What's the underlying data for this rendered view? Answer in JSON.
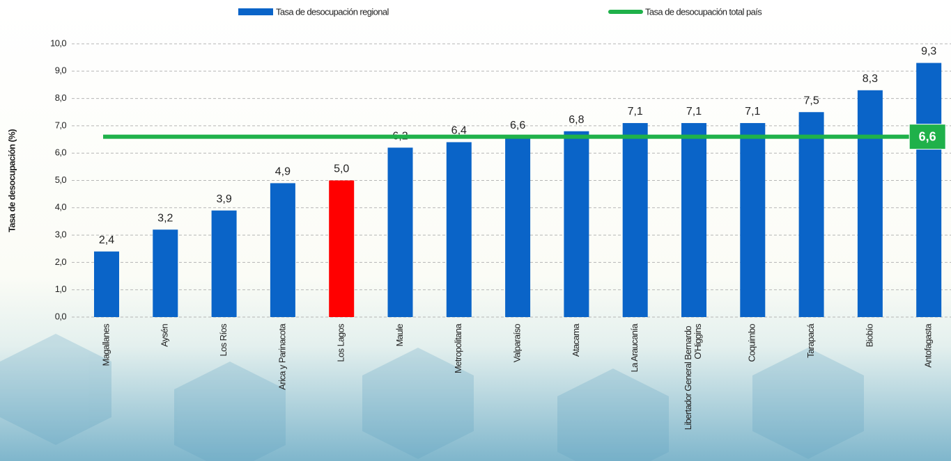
{
  "chart_data": {
    "type": "bar",
    "y_label": "Tasa de desocupación (%)",
    "categories": [
      "Magallanes",
      "Aysén",
      "Los Ríos",
      "Arica y Parinacota",
      "Los Lagos",
      "Maule",
      "Metropolitana",
      "Valparaíso",
      "Atacama",
      "La Araucanía",
      "Libertador General Bernardo O'Higgins",
      "Coquimbo",
      "Tarapacá",
      "Biobío",
      "Antofagasta"
    ],
    "series": [
      {
        "name": "Tasa de desocupación regional",
        "color": "#0a64c8",
        "colors": [
          "#0a64c8",
          "#0a64c8",
          "#0a64c8",
          "#0a64c8",
          "#ff0000",
          "#0a64c8",
          "#0a64c8",
          "#0a64c8",
          "#0a64c8",
          "#0a64c8",
          "#0a64c8",
          "#0a64c8",
          "#0a64c8",
          "#0a64c8",
          "#0a64c8"
        ],
        "values": [
          2.4,
          3.2,
          3.9,
          4.9,
          5.0,
          6.2,
          6.4,
          6.6,
          6.8,
          7.1,
          7.1,
          7.1,
          7.5,
          8.3,
          9.3
        ],
        "value_labels": [
          "2,4",
          "3,2",
          "3,9",
          "4,9",
          "5,0",
          "6,2",
          "6,4",
          "6,6",
          "6,8",
          "7,1",
          "7,1",
          "7,1",
          "7,5",
          "8,3",
          "9,3"
        ]
      },
      {
        "name": "Tasa de desocupación total país",
        "type": "line",
        "color": "#1fb14a",
        "value": 6.6,
        "value_label": "6,6"
      }
    ],
    "ylim": [
      0,
      10
    ],
    "yticks": [
      {
        "value": 0,
        "label": "0,0"
      },
      {
        "value": 1,
        "label": "1,0"
      },
      {
        "value": 2,
        "label": "2,0"
      },
      {
        "value": 3,
        "label": "3,0"
      },
      {
        "value": 4,
        "label": "4,0"
      },
      {
        "value": 5,
        "label": "5,0"
      },
      {
        "value": 6,
        "label": "6,0"
      },
      {
        "value": 7,
        "label": "7,0"
      },
      {
        "value": 8,
        "label": "8,0"
      },
      {
        "value": 9,
        "label": "9,0"
      },
      {
        "value": 10,
        "label": "10,0"
      }
    ],
    "grid": true,
    "legend": "top"
  }
}
